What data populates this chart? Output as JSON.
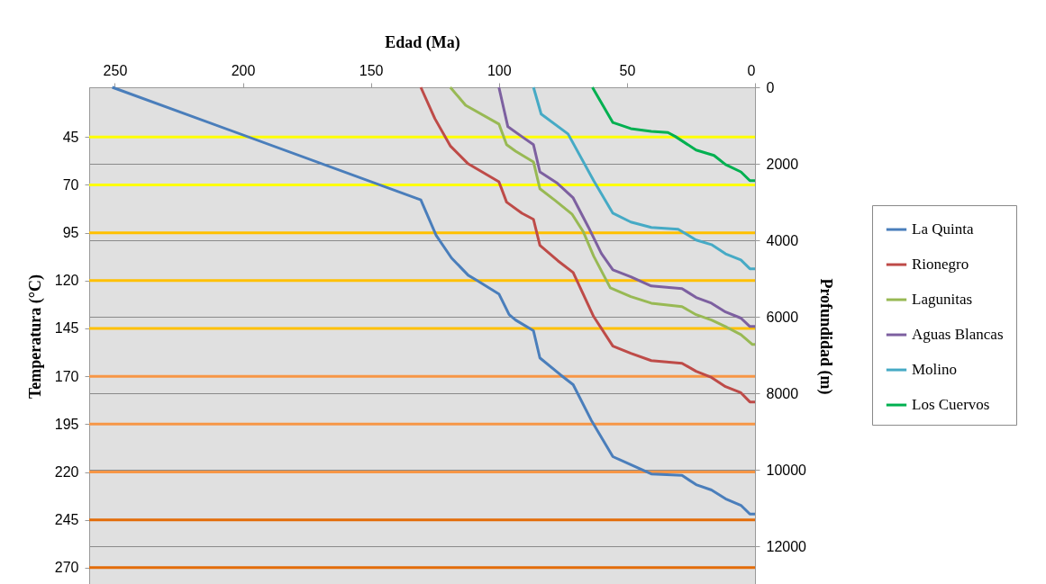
{
  "chart_data": {
    "type": "line",
    "xlabel": "Edad (Ma)",
    "ylabel": "Temperatura (°C)",
    "y2label": "Profundidad (m)",
    "xlim": [
      260,
      0
    ],
    "xticks": [
      250,
      200,
      150,
      100,
      50,
      0
    ],
    "ylim": [
      279,
      19
    ],
    "yticks": [
      45,
      70,
      95,
      120,
      145,
      170,
      195,
      220,
      245,
      270
    ],
    "y2lim": [
      13000,
      0
    ],
    "y2ticks": [
      0,
      2000,
      4000,
      6000,
      8000,
      10000,
      12000
    ],
    "grid": "y2",
    "legend": "right",
    "series": [
      {
        "name": "La Quinta",
        "color": "#4a7ebb",
        "axis": "y2",
        "x": [
          251,
          130.5,
          124.5,
          118.5,
          112,
          108.5,
          100,
          96,
          93.5,
          91,
          86.5,
          84,
          76,
          71,
          64,
          55.5,
          48.5,
          40.5,
          28.5,
          23,
          17,
          11.5,
          5.5,
          2,
          0
        ],
        "values": [
          0,
          2940,
          3870,
          4460,
          4910,
          5050,
          5400,
          5940,
          6080,
          6180,
          6360,
          7070,
          7510,
          7770,
          8690,
          9650,
          9860,
          10100,
          10140,
          10380,
          10520,
          10750,
          10920,
          11150,
          11150
        ]
      },
      {
        "name": "Rionegro",
        "color": "#be4b48",
        "axis": "y2",
        "x": [
          130.5,
          125,
          119,
          112,
          100,
          97,
          91,
          86.5,
          84,
          77,
          71,
          63,
          55.5,
          48.5,
          40.5,
          28.5,
          23,
          17,
          11.5,
          5.5,
          2,
          0
        ],
        "values": [
          0,
          820,
          1530,
          2000,
          2470,
          3000,
          3290,
          3450,
          4130,
          4530,
          4840,
          5990,
          6760,
          6950,
          7140,
          7210,
          7420,
          7580,
          7820,
          7980,
          8220,
          8220
        ]
      },
      {
        "name": "Lagunitas",
        "color": "#98b954",
        "axis": "y2",
        "x": [
          119,
          113,
          100,
          97,
          93.5,
          86.5,
          84,
          78,
          71.5,
          67,
          63,
          56.5,
          48.5,
          40.5,
          28.5,
          23,
          17,
          11,
          5.5,
          1,
          0
        ],
        "values": [
          0,
          470,
          960,
          1500,
          1670,
          1950,
          2650,
          2960,
          3310,
          3780,
          4410,
          5240,
          5470,
          5640,
          5730,
          5940,
          6080,
          6270,
          6460,
          6720,
          6720
        ]
      },
      {
        "name": "Aguas Blancas",
        "color": "#7d60a0",
        "axis": "y2",
        "x": [
          100,
          96.5,
          91,
          86.5,
          84,
          77.5,
          71,
          65,
          60,
          55.5,
          48.5,
          40.5,
          28.5,
          23,
          17,
          11.5,
          5.5,
          2,
          0
        ],
        "values": [
          0,
          1030,
          1290,
          1500,
          2210,
          2490,
          2890,
          3660,
          4340,
          4770,
          4950,
          5190,
          5260,
          5490,
          5640,
          5870,
          6030,
          6250,
          6250
        ]
      },
      {
        "name": "Molino",
        "color": "#46aac5",
        "axis": "y2",
        "x": [
          86.5,
          83.5,
          73,
          63,
          55.5,
          48.5,
          40.5,
          30,
          23,
          17,
          11.5,
          5.5,
          2,
          0
        ],
        "values": [
          0,
          700,
          1220,
          2440,
          3290,
          3520,
          3660,
          3710,
          3990,
          4110,
          4350,
          4510,
          4740,
          4740
        ]
      },
      {
        "name": "Los Cuervos",
        "color": "#00b050",
        "axis": "y2",
        "x": [
          63.5,
          55.5,
          48.5,
          40.5,
          34,
          31,
          23,
          16,
          11.5,
          5.5,
          2,
          0
        ],
        "values": [
          0,
          920,
          1080,
          1150,
          1180,
          1290,
          1640,
          1780,
          2020,
          2210,
          2440,
          2440
        ]
      },
      {
        "color": "#ffff00",
        "x": [
          260,
          0
        ],
        "values": [
          45,
          45
        ]
      },
      {
        "color": "#ffff00",
        "x": [
          260,
          0
        ],
        "values": [
          70,
          70
        ]
      },
      {
        "color": "#ffc000",
        "x": [
          260,
          0
        ],
        "values": [
          95,
          95
        ]
      },
      {
        "color": "#ffc000",
        "x": [
          260,
          0
        ],
        "values": [
          120,
          120
        ]
      },
      {
        "color": "#ffc000",
        "x": [
          260,
          0
        ],
        "values": [
          145,
          145
        ]
      },
      {
        "color": "#f79646",
        "x": [
          260,
          0
        ],
        "values": [
          170,
          170
        ]
      },
      {
        "color": "#f79646",
        "x": [
          260,
          0
        ],
        "values": [
          195,
          195
        ]
      },
      {
        "color": "#f79646",
        "x": [
          260,
          0
        ],
        "values": [
          220,
          220
        ]
      },
      {
        "color": "#e36c09",
        "x": [
          260,
          0
        ],
        "values": [
          245,
          245
        ]
      },
      {
        "color": "#e36c09",
        "x": [
          260,
          0
        ],
        "values": [
          270,
          270
        ]
      }
    ]
  }
}
